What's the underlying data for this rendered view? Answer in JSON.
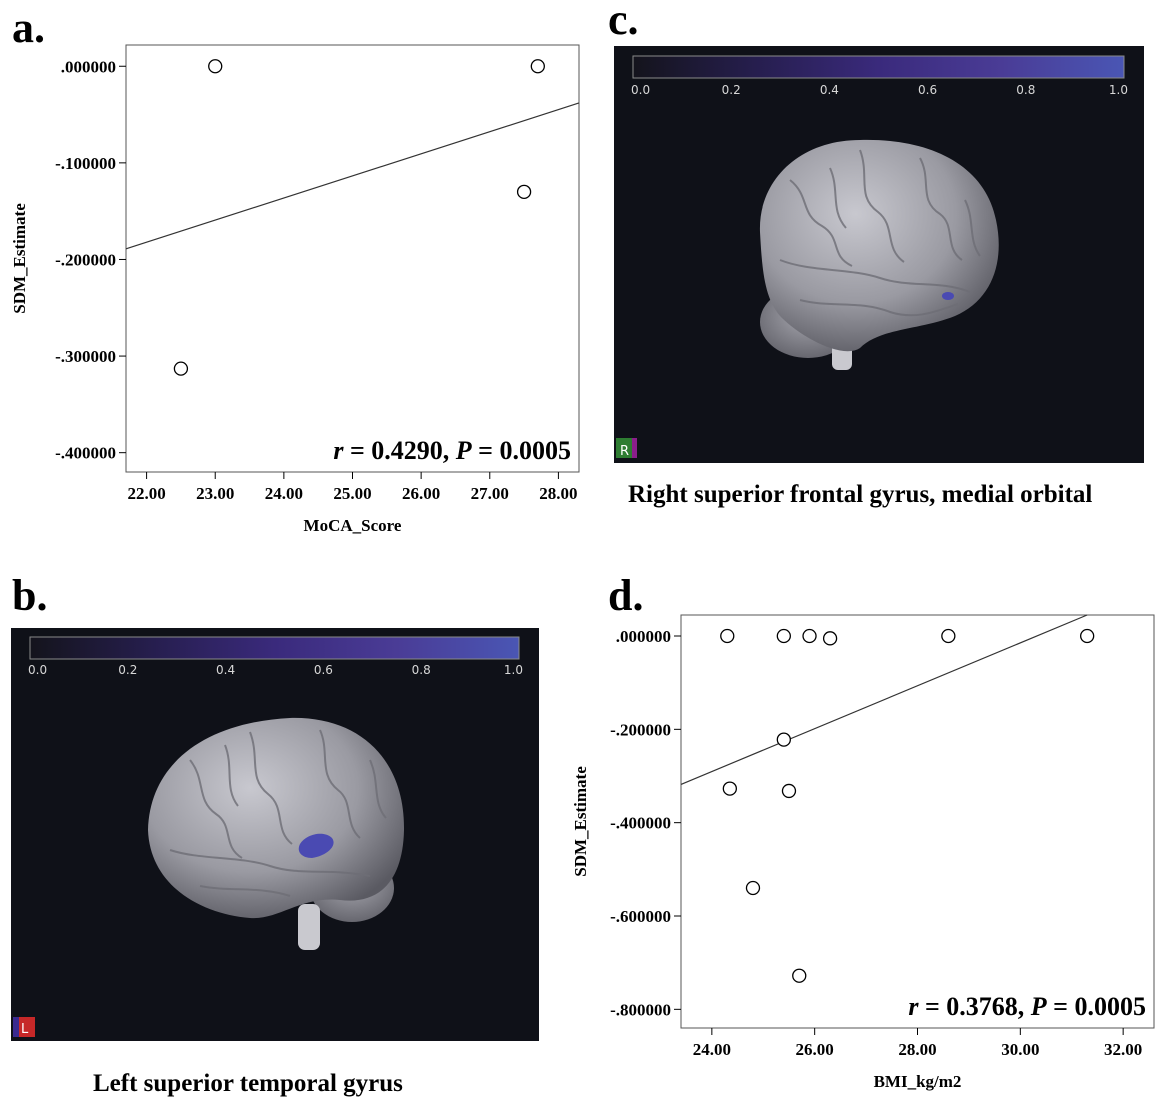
{
  "panels": {
    "a": {
      "letter": "a."
    },
    "b": {
      "letter": "b.",
      "caption": "Left superior temporal gyrus",
      "orientation_label": "L"
    },
    "c": {
      "letter": "c.",
      "caption": "Right superior frontal gyrus, medial orbital",
      "orientation_label": "R"
    },
    "d": {
      "letter": "d."
    }
  },
  "colorbar": {
    "ticks": [
      "0.0",
      "0.2",
      "0.4",
      "0.6",
      "0.8",
      "1.0"
    ],
    "gradient_colors": [
      "#14141c",
      "#261e4e",
      "#3a2a7c",
      "#4a3c96",
      "#4a56b4"
    ]
  },
  "brain_colors": {
    "background": "#0f1118",
    "cortex": "#9a9aa2",
    "highlight": "#4a4ab2"
  },
  "chart_data": [
    {
      "id": "a",
      "type": "scatter",
      "xlabel": "MoCA_Score",
      "ylabel": "SDM_Estimate",
      "xlim": [
        21.7,
        28.3
      ],
      "ylim": [
        -0.42,
        0.022
      ],
      "xticks": [
        22,
        23,
        24,
        25,
        26,
        27,
        28
      ],
      "xtick_labels": [
        "22.00",
        "23.00",
        "24.00",
        "25.00",
        "26.00",
        "27.00",
        "28.00"
      ],
      "yticks": [
        0,
        -0.1,
        -0.2,
        -0.3,
        -0.4
      ],
      "ytick_labels": [
        ".000000",
        "-.100000",
        "-.200000",
        "-.300000",
        "-.400000"
      ],
      "points": [
        {
          "x": 23.0,
          "y": 0.0
        },
        {
          "x": 27.7,
          "y": 0.0
        },
        {
          "x": 27.5,
          "y": -0.13
        },
        {
          "x": 22.5,
          "y": -0.313
        }
      ],
      "fit_line": [
        [
          21.7,
          -0.189
        ],
        [
          28.3,
          -0.038
        ]
      ],
      "annotation": {
        "r_symbol": "r",
        "r_text": " = 0.4290, ",
        "p_symbol": "P",
        "p_text": " = 0.0005"
      }
    },
    {
      "id": "d",
      "type": "scatter",
      "xlabel": "BMI_kg/m2",
      "ylabel": "SDM_Estimate",
      "xlim": [
        23.4,
        32.6
      ],
      "ylim": [
        -0.84,
        0.045
      ],
      "xticks": [
        24,
        26,
        28,
        30,
        32
      ],
      "xtick_labels": [
        "24.00",
        "26.00",
        "28.00",
        "30.00",
        "32.00"
      ],
      "yticks": [
        0,
        -0.2,
        -0.4,
        -0.6,
        -0.8
      ],
      "ytick_labels": [
        ".000000",
        "-.200000",
        "-.400000",
        "-.600000",
        "-.800000"
      ],
      "points": [
        {
          "x": 24.3,
          "y": 0.0
        },
        {
          "x": 25.4,
          "y": 0.0
        },
        {
          "x": 25.9,
          "y": 0.0
        },
        {
          "x": 26.3,
          "y": -0.005
        },
        {
          "x": 28.6,
          "y": 0.0
        },
        {
          "x": 31.3,
          "y": 0.0
        },
        {
          "x": 25.4,
          "y": -0.222
        },
        {
          "x": 24.35,
          "y": -0.327
        },
        {
          "x": 25.5,
          "y": -0.332
        },
        {
          "x": 24.8,
          "y": -0.54
        },
        {
          "x": 25.7,
          "y": -0.728
        }
      ],
      "fit_line": [
        [
          23.4,
          -0.318
        ],
        [
          31.3,
          0.045
        ]
      ],
      "annotation": {
        "r_symbol": "r",
        "r_text": " = 0.3768, ",
        "p_symbol": "P",
        "p_text": " = 0.0005"
      }
    }
  ]
}
